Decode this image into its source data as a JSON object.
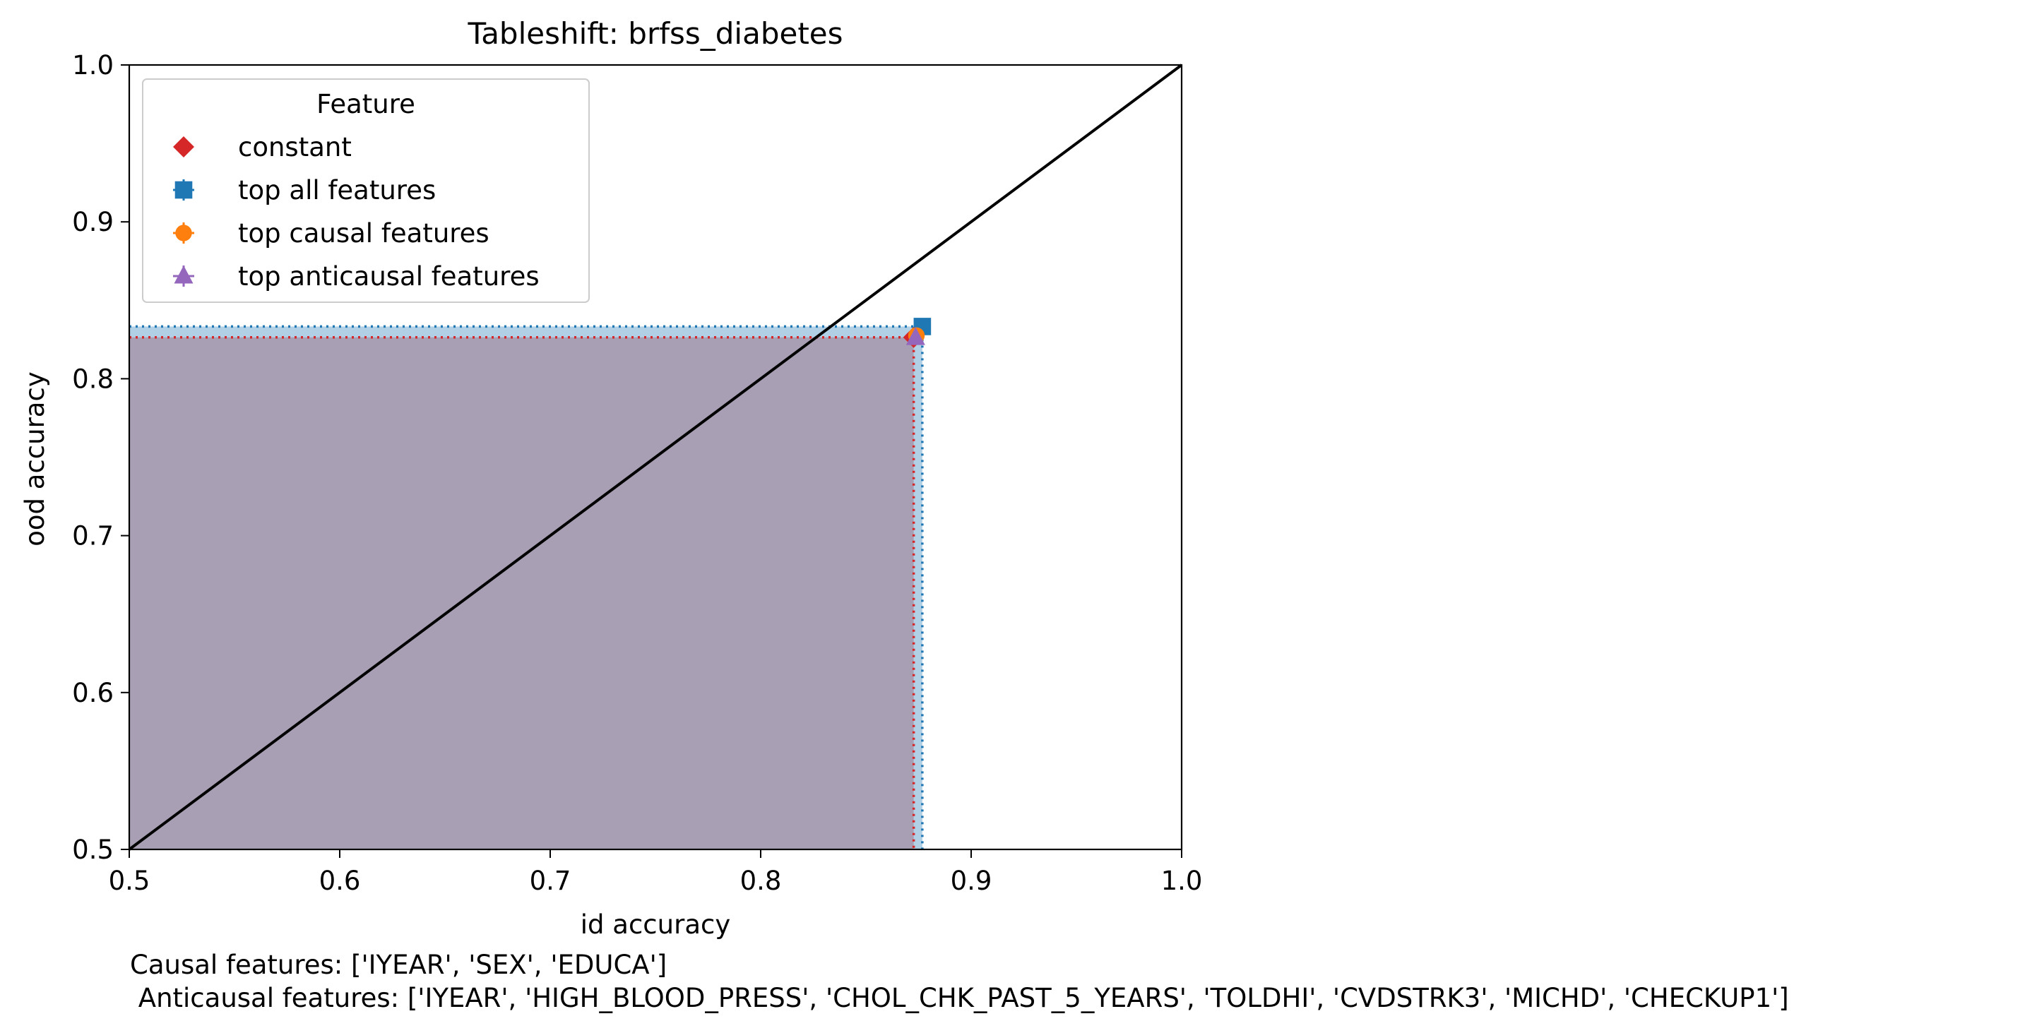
{
  "chart_data": {
    "type": "scatter",
    "title": "Tableshift: brfss_diabetes",
    "xlabel": "id accuracy",
    "ylabel": "ood accuracy",
    "xlim": [
      0.5,
      1.0
    ],
    "ylim": [
      0.5,
      1.0
    ],
    "xticks": [
      "0.5",
      "0.6",
      "0.7",
      "0.8",
      "0.9",
      "1.0"
    ],
    "yticks": [
      "0.5",
      "0.6",
      "0.7",
      "0.8",
      "0.9",
      "1.0"
    ],
    "grid": false,
    "diagonal": {
      "x": [
        0.5,
        1.0
      ],
      "y": [
        0.5,
        1.0
      ],
      "color": "#000000"
    },
    "legend": {
      "title": "Feature",
      "placement": "upper-left",
      "entries": [
        {
          "label": "constant",
          "marker": "diamond",
          "color": "#d62728"
        },
        {
          "label": "top all features",
          "marker": "square",
          "color": "#1f77b4"
        },
        {
          "label": "top causal features",
          "marker": "circle",
          "color": "#ff7f0e"
        },
        {
          "label": "top anticausal features",
          "marker": "triangle",
          "color": "#9467bd"
        }
      ]
    },
    "series": [
      {
        "label": "constant",
        "marker": "diamond",
        "color": "#d62728",
        "x": 0.8727,
        "y": 0.8264,
        "region": true
      },
      {
        "label": "top all features",
        "marker": "square",
        "color": "#1f77b4",
        "x": 0.8768,
        "y": 0.8333,
        "region": true
      },
      {
        "label": "top causal features",
        "marker": "circle",
        "color": "#ff7f0e",
        "x": 0.874,
        "y": 0.8275,
        "region": false
      },
      {
        "label": "top anticausal features",
        "marker": "triangle",
        "color": "#9467bd",
        "x": 0.8736,
        "y": 0.8262,
        "region": false
      }
    ],
    "footnotes": [
      "Causal features: ['IYEAR', 'SEX', 'EDUCA']",
      " Anticausal features: ['IYEAR', 'HIGH_BLOOD_PRESS', 'CHOL_CHK_PAST_5_YEARS', 'TOLDHI', 'CVDSTRK3', 'MICHD', 'CHECKUP1']"
    ]
  }
}
